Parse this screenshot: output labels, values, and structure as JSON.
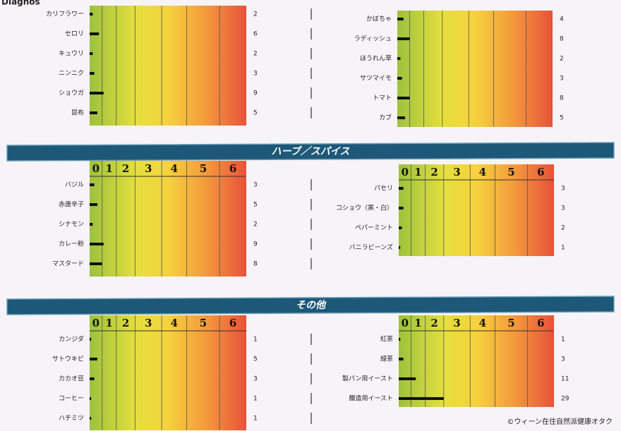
{
  "page": {
    "corner_text": "Diagnos",
    "sections": [
      {
        "panels": [
          {
            "items": [
              {
                "label": "カリフラワー",
                "value": 2
              },
              {
                "label": "セロリ",
                "value": 6
              },
              {
                "label": "キュウリ",
                "value": 2
              },
              {
                "label": "ニンニク",
                "value": 3
              },
              {
                "label": "ショウガ",
                "value": 9
              },
              {
                "label": "昆布",
                "value": 5
              }
            ]
          },
          {
            "items": [
              {
                "label": "かぼちゃ",
                "value": 4
              },
              {
                "label": "ラディッシュ",
                "value": 8
              },
              {
                "label": "ほうれん草",
                "value": 2
              },
              {
                "label": "サツマイモ",
                "value": 3
              },
              {
                "label": "トマト",
                "value": 8
              },
              {
                "label": "カブ",
                "value": 5
              }
            ]
          }
        ]
      },
      {
        "title": "ハーブ／スパイス",
        "columns": [
          "0",
          "1",
          "2",
          "3",
          "4",
          "5",
          "6"
        ],
        "panels": [
          {
            "items": [
              {
                "label": "バジル",
                "value": 3
              },
              {
                "label": "赤唐辛子",
                "value": 5
              },
              {
                "label": "シナモン",
                "value": 2
              },
              {
                "label": "カレー粉",
                "value": 9
              },
              {
                "label": "マスタード",
                "value": 8
              }
            ]
          },
          {
            "items": [
              {
                "label": "パセリ",
                "value": 3
              },
              {
                "label": "コショウ（黒・白）",
                "value": 3
              },
              {
                "label": "ペパーミント",
                "value": 2
              },
              {
                "label": "バニラビーンズ",
                "value": 1
              }
            ]
          }
        ]
      },
      {
        "title": "その他",
        "columns": [
          "0",
          "1",
          "2",
          "3",
          "4",
          "5",
          "6"
        ],
        "panels": [
          {
            "items": [
              {
                "label": "カンジダ",
                "value": 1
              },
              {
                "label": "サトウキビ",
                "value": 5
              },
              {
                "label": "カカオ豆",
                "value": 3
              },
              {
                "label": "コーヒー",
                "value": 1
              },
              {
                "label": "ハチミツ",
                "value": 1
              }
            ]
          },
          {
            "items": [
              {
                "label": "紅茶",
                "value": 1
              },
              {
                "label": "緑茶",
                "value": 3
              },
              {
                "label": "製パン用イースト",
                "value": 11
              },
              {
                "label": "醸造用イースト",
                "value": 29
              }
            ]
          }
        ]
      }
    ],
    "footer": "©ウィーン在住自然派健康オタク"
  }
}
